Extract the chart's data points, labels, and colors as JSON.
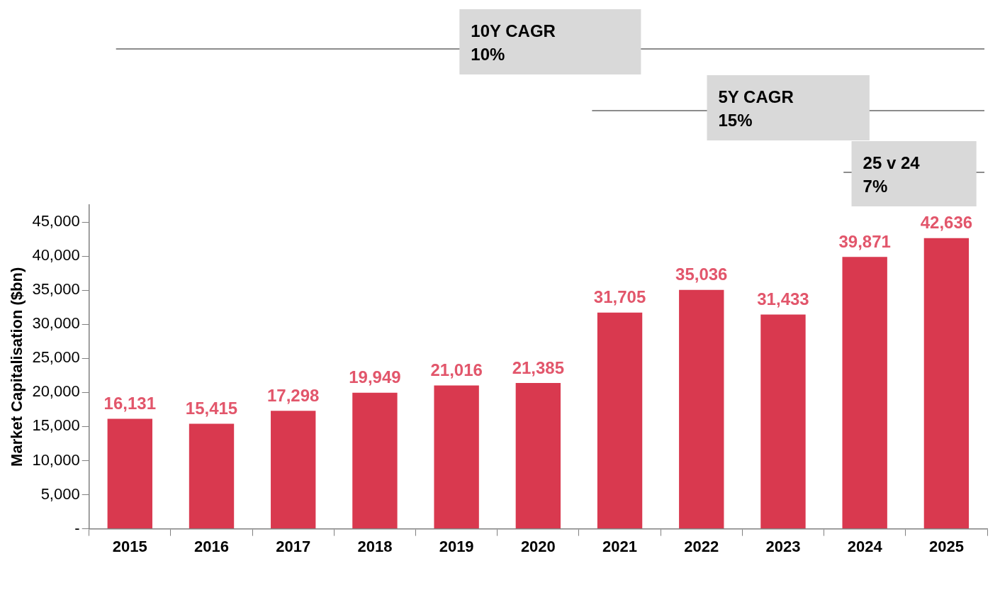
{
  "chart_data": {
    "type": "bar",
    "ylabel": "Market Capitalisation ($bn)",
    "categories": [
      "2015",
      "2016",
      "2017",
      "2018",
      "2019",
      "2020",
      "2021",
      "2022",
      "2023",
      "2024",
      "2025"
    ],
    "values": [
      16131,
      15415,
      17298,
      19949,
      21016,
      21385,
      31705,
      35036,
      31433,
      39871,
      42636
    ],
    "value_labels": [
      "16,131",
      "15,415",
      "17,298",
      "19,949",
      "21,016",
      "21,385",
      "31,705",
      "35,036",
      "31,433",
      "39,871",
      "42,636"
    ],
    "color": "#d9394f",
    "grid": false,
    "legend": false,
    "ylim": [
      0,
      47500
    ],
    "yticks": [
      {
        "value": 0,
        "label": "-"
      },
      {
        "value": 5000,
        "label": "5,000"
      },
      {
        "value": 10000,
        "label": "10,000"
      },
      {
        "value": 15000,
        "label": "15,000"
      },
      {
        "value": 20000,
        "label": "20,000"
      },
      {
        "value": 25000,
        "label": "25,000"
      },
      {
        "value": 30000,
        "label": "30,000"
      },
      {
        "value": 35000,
        "label": "35,000"
      },
      {
        "value": 40000,
        "label": "40,000"
      },
      {
        "value": 45000,
        "label": "45,000"
      }
    ],
    "annotations": [
      "10Y CAGR\n10%",
      "5Y CAGR\n15%",
      "25 v 24\n7%"
    ]
  }
}
